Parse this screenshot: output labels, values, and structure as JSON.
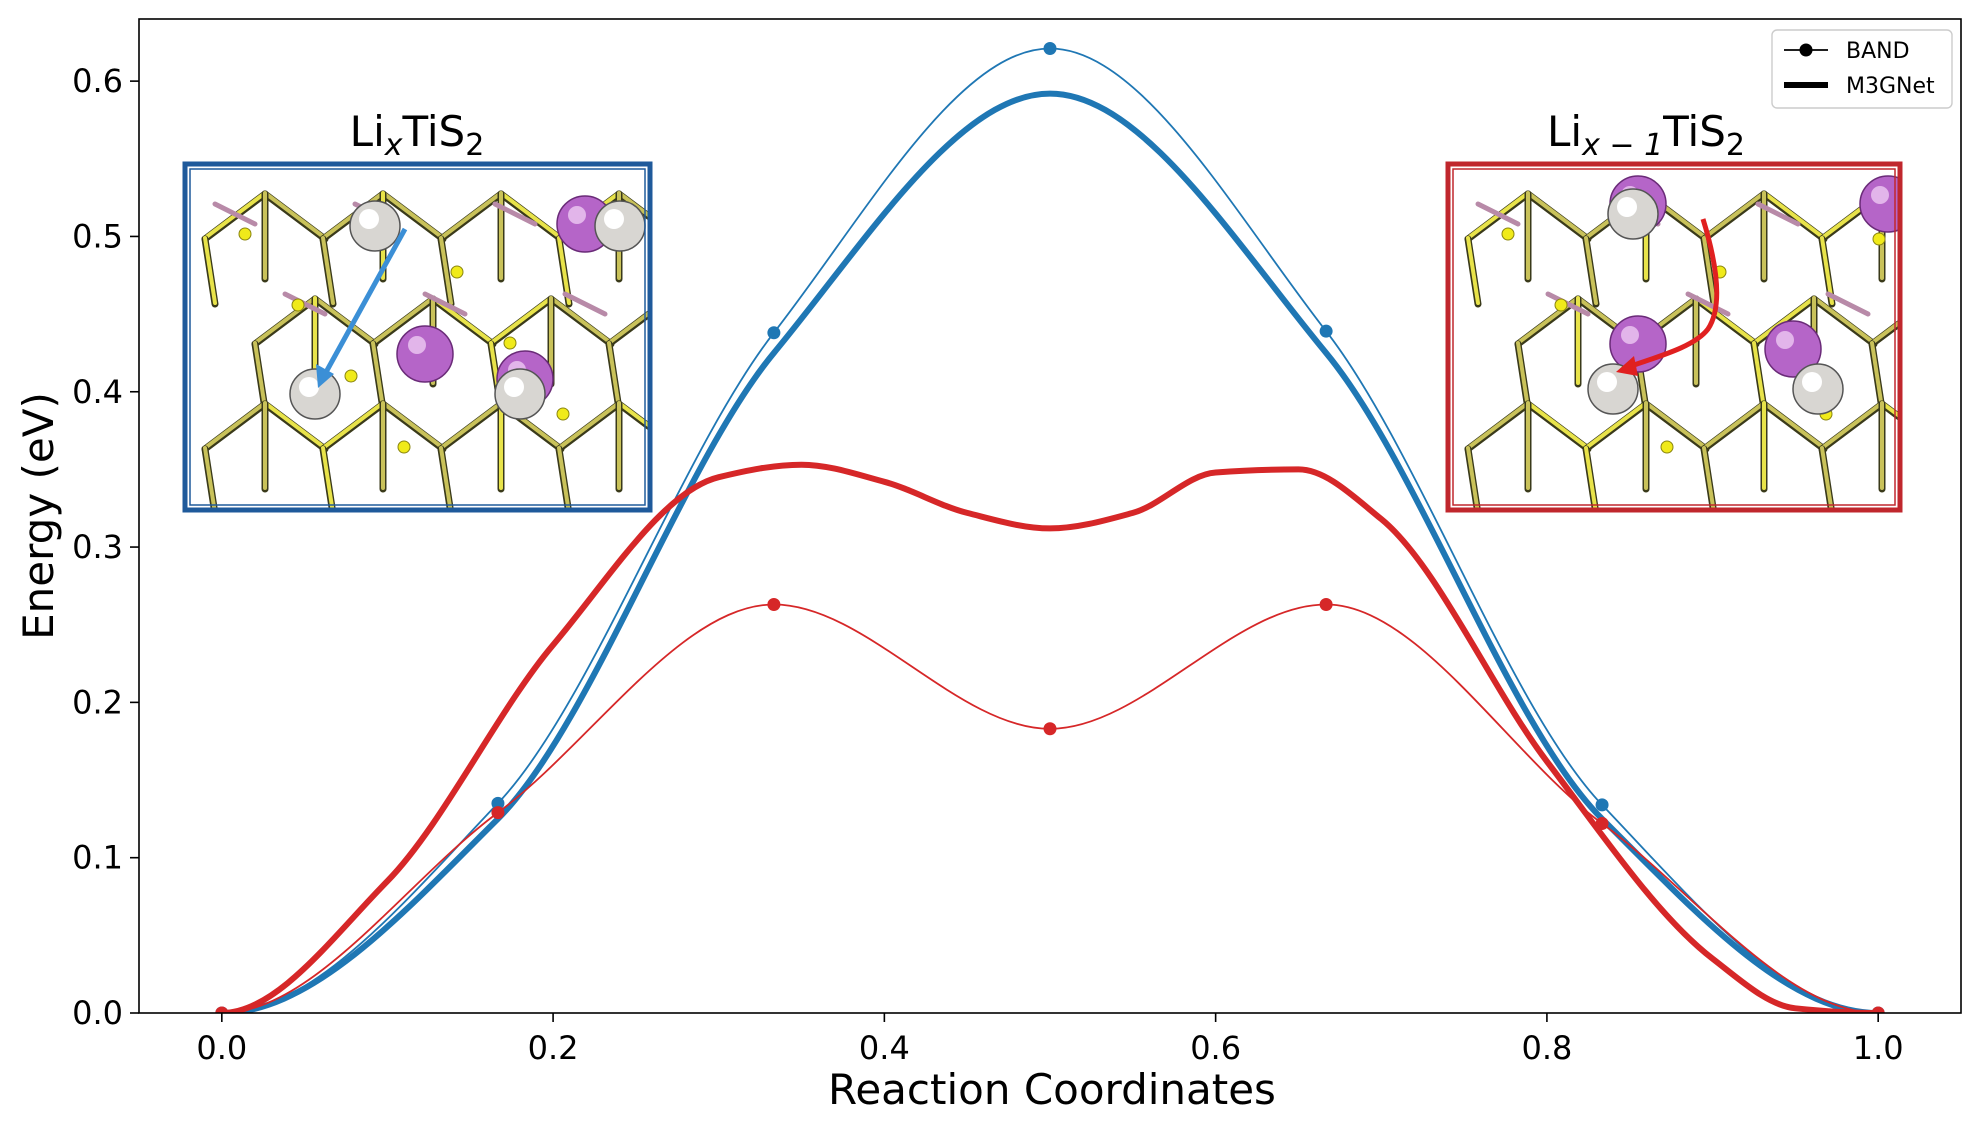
{
  "chart_data": {
    "type": "line",
    "xlabel": "Reaction Coordinates",
    "ylabel": "Energy (eV)",
    "xlim": [
      -0.05,
      1.05
    ],
    "ylim": [
      0.0,
      0.64
    ],
    "xticks": [
      "0.0",
      "0.2",
      "0.4",
      "0.6",
      "0.8",
      "1.0"
    ],
    "yticks": [
      "0.0",
      "0.1",
      "0.2",
      "0.3",
      "0.4",
      "0.5",
      "0.6"
    ],
    "grid": false,
    "legend": {
      "position": "top-right",
      "entries": [
        {
          "label": "BAND",
          "style": "thin line with dot markers"
        },
        {
          "label": "M3GNet",
          "style": "thick line"
        }
      ]
    },
    "series": [
      {
        "model": "BAND",
        "path": "LixTiS2",
        "color": "#1f77b4",
        "x": [
          0.0,
          0.1667,
          0.3333,
          0.5,
          0.6667,
          0.8333,
          1.0
        ],
        "values": [
          0.0,
          0.135,
          0.438,
          0.621,
          0.439,
          0.134,
          0.0
        ]
      },
      {
        "model": "M3GNet",
        "path": "LixTiS2",
        "color": "#1f77b4",
        "x": [
          0.0,
          0.1667,
          0.3333,
          0.5,
          0.6667,
          0.8333,
          1.0
        ],
        "values": [
          0.0,
          0.125,
          0.425,
          0.592,
          0.425,
          0.125,
          0.0
        ]
      },
      {
        "model": "BAND",
        "path": "Lix-1TiS2",
        "color": "#d62728",
        "x": [
          0.0,
          0.1667,
          0.3333,
          0.5,
          0.6667,
          0.8333,
          1.0
        ],
        "values": [
          0.0,
          0.129,
          0.263,
          0.183,
          0.263,
          0.122,
          0.0
        ]
      },
      {
        "model": "M3GNet",
        "path": "Lix-1TiS2",
        "color": "#d62728",
        "x": [
          0.0,
          0.1,
          0.2,
          0.3,
          0.35,
          0.4,
          0.45,
          0.5,
          0.55,
          0.6,
          0.65,
          0.7,
          0.8,
          0.9,
          0.95,
          1.0
        ],
        "values": [
          0.0,
          0.085,
          0.237,
          0.345,
          0.353,
          0.342,
          0.322,
          0.312,
          0.322,
          0.348,
          0.35,
          0.318,
          0.162,
          0.035,
          0.003,
          0.0
        ]
      }
    ],
    "insets": [
      {
        "title_base": "Li",
        "title_sub": "x",
        "title_rest": "TiS",
        "title_sub2": "2",
        "frame_color": "#1f5a9b",
        "arrow_color": "#3b8fd6"
      },
      {
        "title_base": "Li",
        "title_sub": "x − 1",
        "title_rest": "TiS",
        "title_sub2": "2",
        "frame_color": "#c0272d",
        "arrow_color": "#e02020"
      }
    ]
  }
}
